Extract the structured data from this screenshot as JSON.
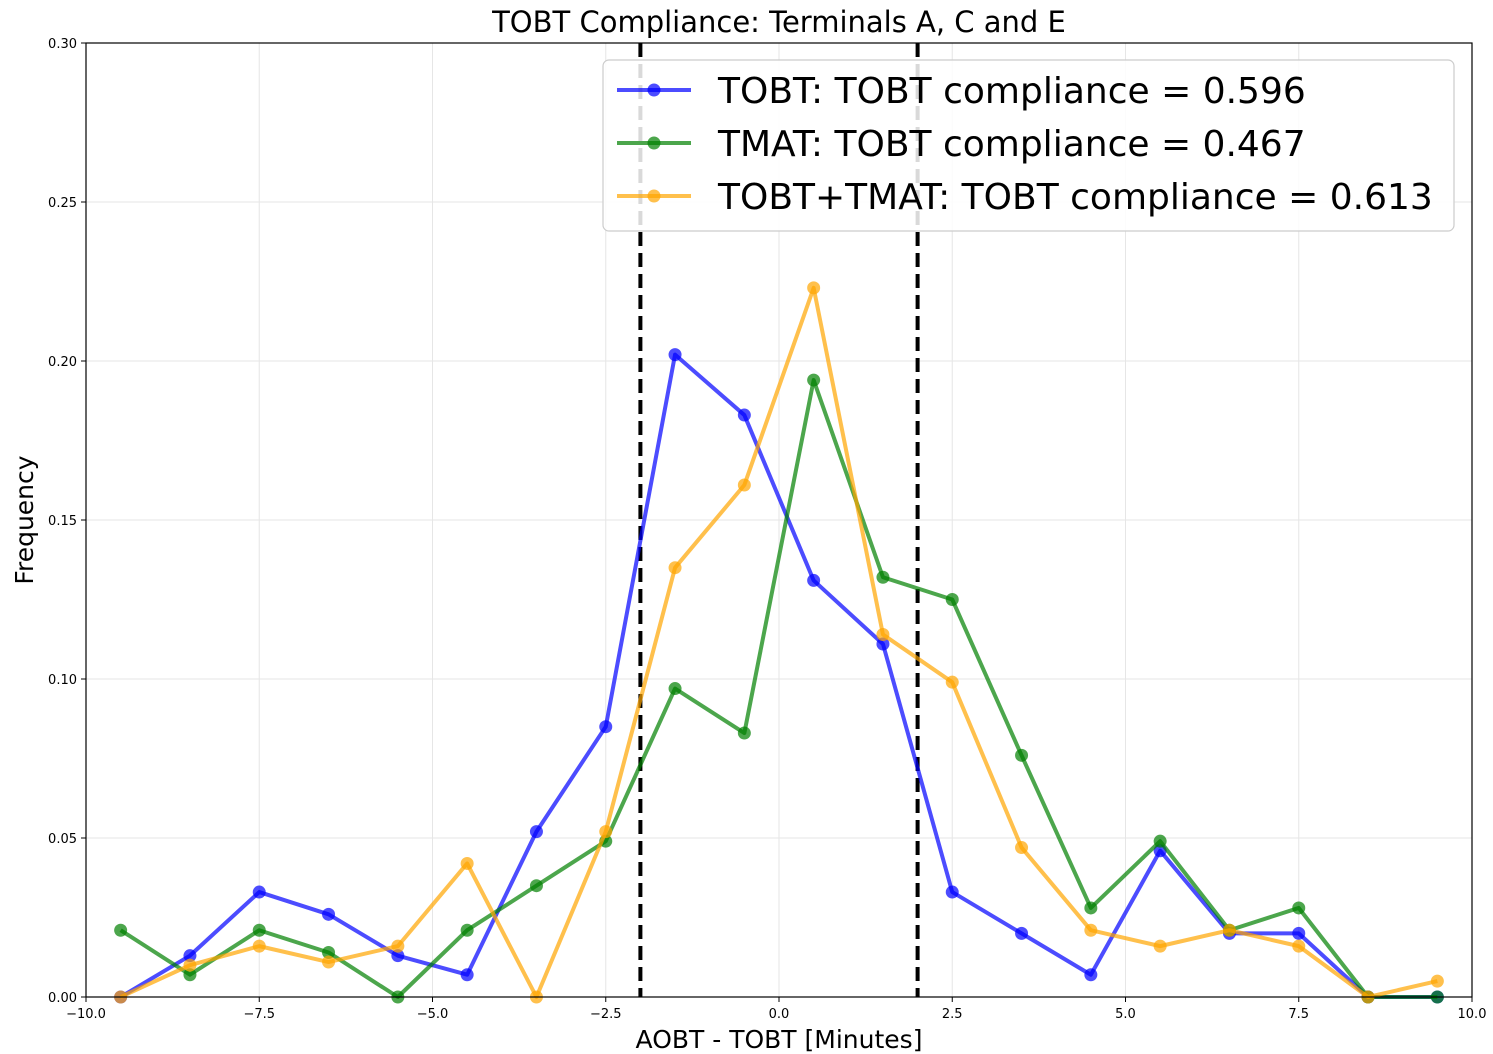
{
  "chart_data": {
    "type": "line",
    "title": "TOBT Compliance: Terminals A, C and E",
    "xlabel": "AOBT - TOBT [Minutes]",
    "ylabel": "Frequency",
    "xlim": [
      -10.0,
      10.0
    ],
    "ylim": [
      0.0,
      0.3
    ],
    "x_ticks": [
      -10.0,
      -7.5,
      -5.0,
      -2.5,
      0.0,
      2.5,
      5.0,
      7.5,
      10.0
    ],
    "x_tick_labels": [
      "−10.0",
      "−7.5",
      "−5.0",
      "−2.5",
      "0.0",
      "2.5",
      "5.0",
      "7.5",
      "10.0"
    ],
    "y_ticks": [
      0.0,
      0.05,
      0.1,
      0.15,
      0.2,
      0.25,
      0.3
    ],
    "y_tick_labels": [
      "0.00",
      "0.05",
      "0.10",
      "0.15",
      "0.20",
      "0.25",
      "0.30"
    ],
    "grid": true,
    "legend_position": "top-right",
    "x": [
      -9.5,
      -8.5,
      -7.5,
      -6.5,
      -5.5,
      -4.5,
      -3.5,
      -2.5,
      -1.5,
      -0.5,
      0.5,
      1.5,
      2.5,
      3.5,
      4.5,
      5.5,
      6.5,
      7.5,
      8.5,
      9.5
    ],
    "series": [
      {
        "name": "TOBT: TOBT compliance = 0.596",
        "color": "#0000ff",
        "values": [
          0.0,
          0.013,
          0.033,
          0.026,
          0.013,
          0.007,
          0.052,
          0.085,
          0.202,
          0.183,
          0.131,
          0.111,
          0.033,
          0.02,
          0.007,
          0.046,
          0.02,
          0.02,
          0.0,
          0.0
        ]
      },
      {
        "name": "TMAT: TOBT compliance = 0.467",
        "color": "#008000",
        "values": [
          0.021,
          0.007,
          0.021,
          0.014,
          0.0,
          0.021,
          0.035,
          0.049,
          0.097,
          0.083,
          0.194,
          0.132,
          0.125,
          0.076,
          0.028,
          0.049,
          0.021,
          0.028,
          0.0,
          0.0
        ]
      },
      {
        "name": "TOBT+TMAT: TOBT compliance = 0.613",
        "color": "#ffa500",
        "values": [
          0.0,
          0.01,
          0.016,
          0.011,
          0.016,
          0.042,
          0.0,
          0.052,
          0.135,
          0.161,
          0.223,
          0.114,
          0.099,
          0.047,
          0.021,
          0.016,
          0.021,
          0.016,
          0.0,
          0.005
        ]
      }
    ],
    "vertical_lines": [
      -2.0,
      2.0
    ]
  }
}
